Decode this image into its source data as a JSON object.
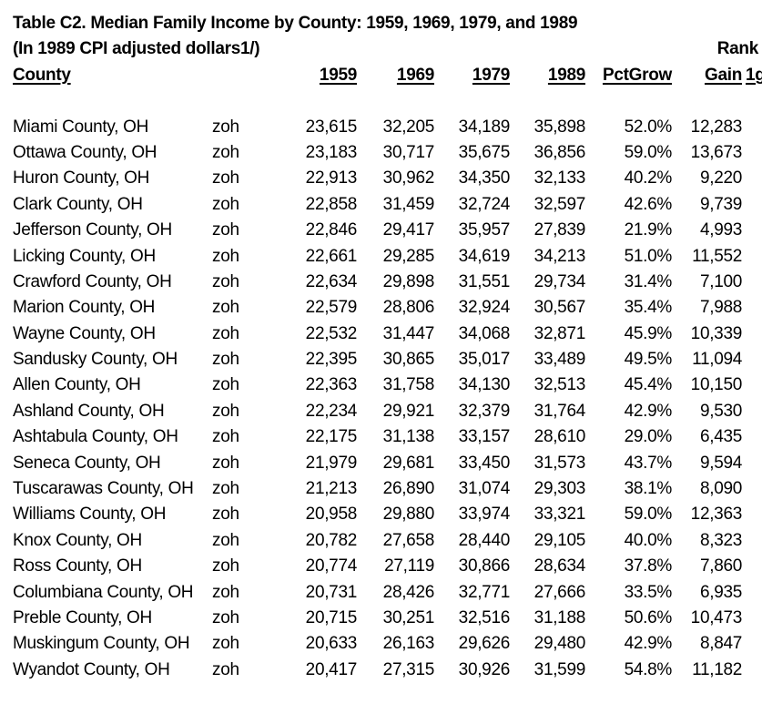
{
  "document": {
    "title": "Table C2. Median Family Income by County: 1959, 1969, 1979, and 1989",
    "subtitle": "(In 1989 CPI adjusted dollars1/)",
    "rank_label": "Rank",
    "clipped_header_fragment": "1g",
    "text_color": "#000000",
    "background_color": "#ffffff"
  },
  "table": {
    "headers": {
      "county": "County",
      "code": "",
      "y1959": "1959",
      "y1969": "1969",
      "y1979": "1979",
      "y1989": "1989",
      "pctgrow": "PctGrow",
      "gain": "Gain"
    },
    "column_keys": [
      "county",
      "code",
      "y1959",
      "y1969",
      "y1979",
      "y1989",
      "pctgrow",
      "gain"
    ],
    "rows": [
      {
        "county": "Miami County, OH",
        "code": "zoh",
        "y1959": "23,615",
        "y1969": "32,205",
        "y1979": "34,189",
        "y1989": "35,898",
        "pctgrow": "52.0%",
        "gain": "12,283"
      },
      {
        "county": "Ottawa County, OH",
        "code": "zoh",
        "y1959": "23,183",
        "y1969": "30,717",
        "y1979": "35,675",
        "y1989": "36,856",
        "pctgrow": "59.0%",
        "gain": "13,673"
      },
      {
        "county": "Huron County, OH",
        "code": "zoh",
        "y1959": "22,913",
        "y1969": "30,962",
        "y1979": "34,350",
        "y1989": "32,133",
        "pctgrow": "40.2%",
        "gain": "9,220"
      },
      {
        "county": "Clark County, OH",
        "code": "zoh",
        "y1959": "22,858",
        "y1969": "31,459",
        "y1979": "32,724",
        "y1989": "32,597",
        "pctgrow": "42.6%",
        "gain": "9,739"
      },
      {
        "county": "Jefferson County, OH",
        "code": "zoh",
        "y1959": "22,846",
        "y1969": "29,417",
        "y1979": "35,957",
        "y1989": "27,839",
        "pctgrow": "21.9%",
        "gain": "4,993"
      },
      {
        "county": "Licking County, OH",
        "code": "zoh",
        "y1959": "22,661",
        "y1969": "29,285",
        "y1979": "34,619",
        "y1989": "34,213",
        "pctgrow": "51.0%",
        "gain": "11,552"
      },
      {
        "county": "Crawford County, OH",
        "code": "zoh",
        "y1959": "22,634",
        "y1969": "29,898",
        "y1979": "31,551",
        "y1989": "29,734",
        "pctgrow": "31.4%",
        "gain": "7,100"
      },
      {
        "county": "Marion County, OH",
        "code": "zoh",
        "y1959": "22,579",
        "y1969": "28,806",
        "y1979": "32,924",
        "y1989": "30,567",
        "pctgrow": "35.4%",
        "gain": "7,988"
      },
      {
        "county": "Wayne County, OH",
        "code": "zoh",
        "y1959": "22,532",
        "y1969": "31,447",
        "y1979": "34,068",
        "y1989": "32,871",
        "pctgrow": "45.9%",
        "gain": "10,339"
      },
      {
        "county": "Sandusky County, OH",
        "code": "zoh",
        "y1959": "22,395",
        "y1969": "30,865",
        "y1979": "35,017",
        "y1989": "33,489",
        "pctgrow": "49.5%",
        "gain": "11,094"
      },
      {
        "county": "Allen County, OH",
        "code": "zoh",
        "y1959": "22,363",
        "y1969": "31,758",
        "y1979": "34,130",
        "y1989": "32,513",
        "pctgrow": "45.4%",
        "gain": "10,150"
      },
      {
        "county": "Ashland County, OH",
        "code": "zoh",
        "y1959": "22,234",
        "y1969": "29,921",
        "y1979": "32,379",
        "y1989": "31,764",
        "pctgrow": "42.9%",
        "gain": "9,530"
      },
      {
        "county": "Ashtabula County, OH",
        "code": "zoh",
        "y1959": "22,175",
        "y1969": "31,138",
        "y1979": "33,157",
        "y1989": "28,610",
        "pctgrow": "29.0%",
        "gain": "6,435"
      },
      {
        "county": "Seneca County, OH",
        "code": "zoh",
        "y1959": "21,979",
        "y1969": "29,681",
        "y1979": "33,450",
        "y1989": "31,573",
        "pctgrow": "43.7%",
        "gain": "9,594"
      },
      {
        "county": "Tuscarawas County, OH",
        "code": "zoh",
        "y1959": "21,213",
        "y1969": "26,890",
        "y1979": "31,074",
        "y1989": "29,303",
        "pctgrow": "38.1%",
        "gain": "8,090"
      },
      {
        "county": "Williams County, OH",
        "code": "zoh",
        "y1959": "20,958",
        "y1969": "29,880",
        "y1979": "33,974",
        "y1989": "33,321",
        "pctgrow": "59.0%",
        "gain": "12,363"
      },
      {
        "county": "Knox County, OH",
        "code": "zoh",
        "y1959": "20,782",
        "y1969": "27,658",
        "y1979": "28,440",
        "y1989": "29,105",
        "pctgrow": "40.0%",
        "gain": "8,323"
      },
      {
        "county": "Ross County, OH",
        "code": "zoh",
        "y1959": "20,774",
        "y1969": "27,119",
        "y1979": "30,866",
        "y1989": "28,634",
        "pctgrow": "37.8%",
        "gain": "7,860"
      },
      {
        "county": "Columbiana County, OH",
        "code": "zoh",
        "y1959": "20,731",
        "y1969": "28,426",
        "y1979": "32,771",
        "y1989": "27,666",
        "pctgrow": "33.5%",
        "gain": "6,935"
      },
      {
        "county": "Preble County, OH",
        "code": "zoh",
        "y1959": "20,715",
        "y1969": "30,251",
        "y1979": "32,516",
        "y1989": "31,188",
        "pctgrow": "50.6%",
        "gain": "10,473"
      },
      {
        "county": "Muskingum County, OH",
        "code": "zoh",
        "y1959": "20,633",
        "y1969": "26,163",
        "y1979": "29,626",
        "y1989": "29,480",
        "pctgrow": "42.9%",
        "gain": "8,847"
      },
      {
        "county": "Wyandot County, OH",
        "code": "zoh",
        "y1959": "20,417",
        "y1969": "27,315",
        "y1979": "30,926",
        "y1989": "31,599",
        "pctgrow": "54.8%",
        "gain": "11,182"
      }
    ]
  }
}
